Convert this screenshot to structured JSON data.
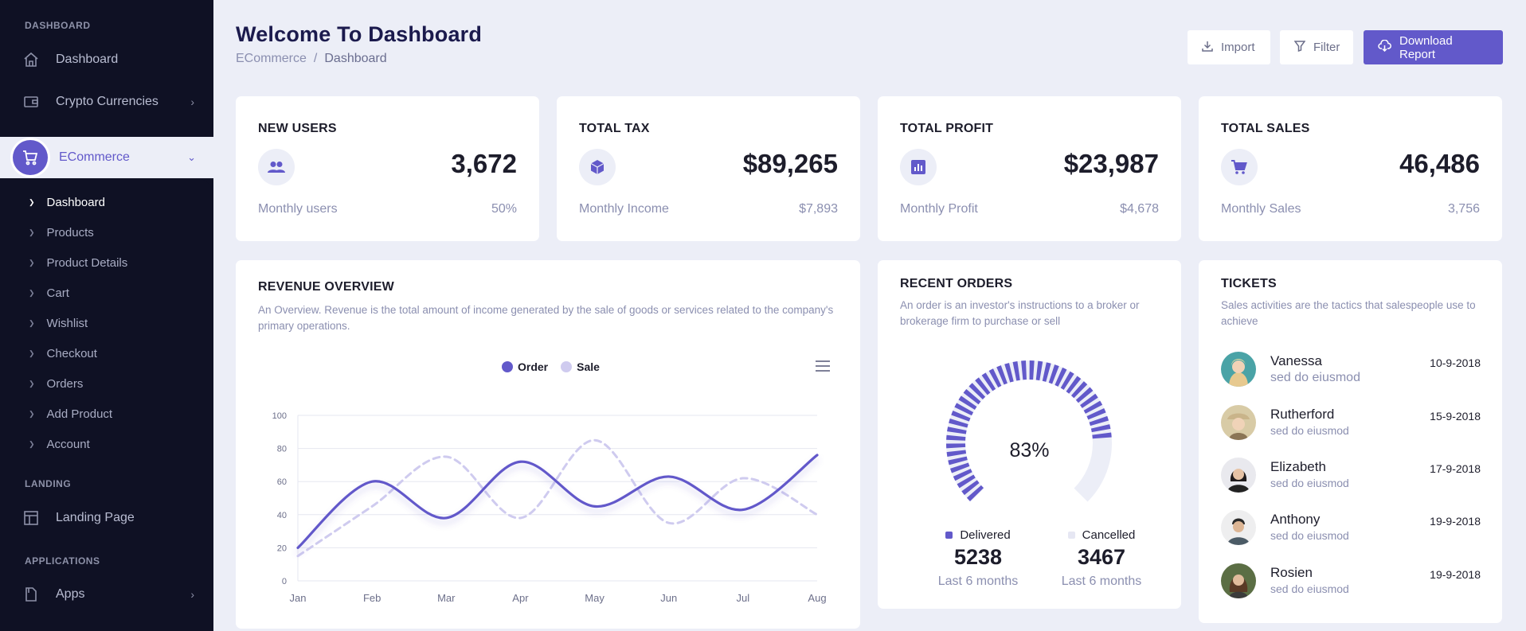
{
  "sidebar": {
    "section_dashboard": "DASHBOARD",
    "item_dashboard": "Dashboard",
    "item_crypto": "Crypto Currencies",
    "item_ecommerce": "ECommerce",
    "sub_items": [
      "Dashboard",
      "Products",
      "Product Details",
      "Cart",
      "Wishlist",
      "Checkout",
      "Orders",
      "Add Product",
      "Account"
    ],
    "section_landing": "LANDING",
    "item_landing": "Landing Page",
    "section_applications": "APPLICATIONS",
    "item_apps": "Apps"
  },
  "header": {
    "title": "Welcome To Dashboard",
    "breadcrumb": [
      "ECommerce",
      "/",
      "Dashboard"
    ],
    "import_label": "Import",
    "filter_label": "Filter",
    "download_label": "Download Report"
  },
  "stats": [
    {
      "title": "NEW USERS",
      "value": "3,672",
      "sub": "Monthly users",
      "sub_value": "50%",
      "icon": "users-icon"
    },
    {
      "title": "TOTAL TAX",
      "value": "$89,265",
      "sub": "Monthly Income",
      "sub_value": "$7,893",
      "icon": "cube-icon"
    },
    {
      "title": "TOTAL PROFIT",
      "value": "$23,987",
      "sub": "Monthly Profit",
      "sub_value": "$4,678",
      "icon": "bar-chart-icon"
    },
    {
      "title": "TOTAL SALES",
      "value": "46,486",
      "sub": "Monthly Sales",
      "sub_value": "3,756",
      "icon": "cart-icon"
    }
  ],
  "revenue": {
    "title": "REVENUE OVERVIEW",
    "description_line1": "An Overview. Revenue is the total amount of income generated by the sale of goods or services related to the company's",
    "description_line2": "primary operations."
  },
  "chart_data": {
    "type": "line",
    "categories": [
      "Jan",
      "Feb",
      "Mar",
      "Apr",
      "May",
      "Jun",
      "Jul",
      "Aug"
    ],
    "series": [
      {
        "name": "Order",
        "values": [
          20,
          60,
          38,
          72,
          45,
          63,
          43,
          76
        ],
        "color": "#6259ca",
        "dashed": false
      },
      {
        "name": "Sale",
        "values": [
          15,
          45,
          75,
          38,
          85,
          35,
          62,
          40
        ],
        "color": "#cfcbef",
        "dashed": true
      }
    ],
    "ylim": [
      0,
      100
    ],
    "yticks": [
      0,
      20,
      40,
      60,
      80,
      100
    ],
    "legend": "top-center",
    "grid": true
  },
  "orders": {
    "title": "RECENT ORDERS",
    "description_line1": "An order is an investor's instructions to a broker or",
    "description_line2": "brokerage firm to purchase or sell",
    "percent": 83,
    "percent_label": "83%",
    "delivered_label": "Delivered",
    "delivered_value": "5238",
    "delivered_sub": "Last 6 months",
    "cancelled_label": "Cancelled",
    "cancelled_value": "3467",
    "cancelled_sub": "Last 6 months",
    "delivered_color": "#6259ca",
    "cancelled_color": "#eceef7"
  },
  "tickets": {
    "title": "TICKETS",
    "description_line1": "Sales activities are the tactics that salespeople use to",
    "description_line2": "achieve",
    "rows": [
      {
        "name": "Vanessa",
        "sub": "sed do eiusmod",
        "date": "10-9-2018"
      },
      {
        "name": "Rutherford",
        "sub": "sed do eiusmod",
        "date": "15-9-2018"
      },
      {
        "name": "Elizabeth",
        "sub": "sed do eiusmod",
        "date": "17-9-2018"
      },
      {
        "name": "Anthony",
        "sub": "sed do eiusmod",
        "date": "19-9-2018"
      },
      {
        "name": "Rosien",
        "sub": "sed do eiusmod",
        "date": "19-9-2018"
      }
    ]
  }
}
